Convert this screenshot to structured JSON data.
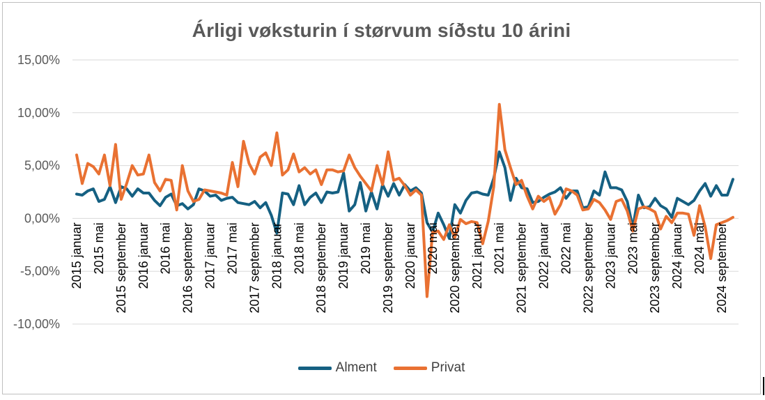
{
  "chart_data": {
    "type": "line",
    "title": "Árligi vøksturin í størvum síðstu 10 árini",
    "xlabel": "",
    "ylabel": "",
    "ylim": [
      -10,
      15
    ],
    "yticks": [
      15,
      10,
      5,
      0,
      -5,
      -10
    ],
    "ytick_labels": [
      "15,00%",
      "10,00%",
      "5,00%",
      "0,00%",
      "-5,00%",
      "-10,00%"
    ],
    "grid": true,
    "legend_position": "bottom",
    "x_tick_labels": [
      {
        "index": 0,
        "label": "2015 januar"
      },
      {
        "index": 4,
        "label": "2015 mai"
      },
      {
        "index": 8,
        "label": "2015 september"
      },
      {
        "index": 12,
        "label": "2016 januar"
      },
      {
        "index": 16,
        "label": "2016 mai"
      },
      {
        "index": 20,
        "label": "2016 september"
      },
      {
        "index": 24,
        "label": "2017 januar"
      },
      {
        "index": 28,
        "label": "2017 mai"
      },
      {
        "index": 32,
        "label": "2017 september"
      },
      {
        "index": 36,
        "label": "2018 januar"
      },
      {
        "index": 40,
        "label": "2018 mai"
      },
      {
        "index": 44,
        "label": "2018 september"
      },
      {
        "index": 48,
        "label": "2019 januar"
      },
      {
        "index": 52,
        "label": "2019 mai"
      },
      {
        "index": 56,
        "label": "2019 september"
      },
      {
        "index": 60,
        "label": "2020 januar"
      },
      {
        "index": 64,
        "label": "2020 mai"
      },
      {
        "index": 68,
        "label": "2020 september"
      },
      {
        "index": 72,
        "label": "2021 januar"
      },
      {
        "index": 76,
        "label": "2021 mai"
      },
      {
        "index": 80,
        "label": "2021 september"
      },
      {
        "index": 84,
        "label": "2022 januar"
      },
      {
        "index": 88,
        "label": "2022 mai"
      },
      {
        "index": 92,
        "label": "2022 september"
      },
      {
        "index": 96,
        "label": "2023 januar"
      },
      {
        "index": 100,
        "label": "2023 mai"
      },
      {
        "index": 104,
        "label": "2023 september"
      },
      {
        "index": 108,
        "label": "2024 januar"
      },
      {
        "index": 112,
        "label": "2024 mai"
      },
      {
        "index": 116,
        "label": "2024 september"
      }
    ],
    "series": [
      {
        "name": "Alment",
        "color": "#156082",
        "values": [
          2.3,
          2.2,
          2.6,
          2.8,
          1.6,
          1.8,
          3.0,
          1.5,
          3.0,
          2.8,
          2.1,
          2.8,
          2.4,
          2.4,
          1.7,
          1.2,
          2.0,
          2.3,
          1.2,
          1.4,
          0.9,
          1.3,
          2.8,
          2.6,
          2.1,
          2.2,
          1.7,
          1.9,
          2.0,
          1.5,
          1.4,
          1.3,
          1.6,
          1.0,
          1.5,
          0.3,
          -1.4,
          2.4,
          2.3,
          1.3,
          3.1,
          1.3,
          2.0,
          2.4,
          1.5,
          2.5,
          2.4,
          2.5,
          4.3,
          0.7,
          1.3,
          3.4,
          0.7,
          2.5,
          0.9,
          3.2,
          2.1,
          3.3,
          2.2,
          3.2,
          2.6,
          2.9,
          2.4,
          -0.4,
          -1.3,
          0.5,
          -0.6,
          -1.9,
          1.3,
          0.5,
          1.7,
          2.4,
          2.5,
          2.3,
          2.2,
          3.8,
          6.3,
          4.8,
          1.7,
          3.8,
          2.9,
          2.8,
          1.5,
          1.6,
          2.0,
          2.3,
          2.5,
          2.9,
          1.9,
          2.6,
          2.6,
          1.0,
          1.1,
          2.6,
          2.2,
          4.4,
          2.9,
          2.9,
          2.7,
          1.6,
          -0.9,
          2.2,
          1.0,
          1.1,
          1.9,
          1.2,
          0.9,
          0.1,
          1.9,
          1.6,
          1.3,
          1.7,
          2.6,
          3.3,
          2.1,
          3.1,
          2.2,
          2.2,
          3.7
        ]
      },
      {
        "name": "Privat",
        "color": "#E97132",
        "values": [
          6.0,
          3.3,
          5.2,
          4.9,
          4.2,
          6.0,
          3.1,
          7.0,
          1.8,
          3.3,
          5.0,
          4.1,
          4.2,
          6.0,
          3.4,
          2.6,
          3.7,
          3.6,
          0.8,
          5.0,
          2.6,
          1.6,
          1.8,
          2.7,
          2.6,
          2.5,
          2.4,
          2.2,
          5.3,
          3.0,
          7.3,
          5.2,
          4.2,
          5.8,
          6.2,
          5.0,
          8.1,
          4.1,
          4.6,
          6.1,
          4.4,
          4.8,
          4.2,
          4.6,
          3.2,
          4.6,
          4.6,
          4.4,
          4.5,
          6.0,
          4.8,
          4.0,
          3.3,
          2.6,
          5.0,
          3.2,
          6.3,
          3.6,
          3.8,
          3.1,
          2.2,
          2.7,
          2.2,
          -7.4,
          -1.3,
          -1.2,
          -2.0,
          -0.6,
          -1.8,
          -0.1,
          -0.5,
          -0.3,
          -0.4,
          -2.4,
          -0.3,
          3.0,
          10.8,
          6.5,
          4.8,
          3.2,
          3.6,
          2.1,
          0.9,
          2.1,
          1.6,
          2.0,
          0.4,
          1.3,
          2.8,
          2.6,
          2.2,
          0.8,
          0.9,
          1.8,
          1.5,
          0.8,
          -0.1,
          1.6,
          1.8,
          0.7,
          -1.2,
          0.9,
          1.1,
          0.9,
          0.6,
          -1.0,
          0.2,
          -0.4,
          0.5,
          0.5,
          0.4,
          -1.6,
          1.2,
          -0.8,
          -3.8,
          -0.6,
          -0.4,
          -0.2,
          0.1
        ]
      }
    ]
  }
}
